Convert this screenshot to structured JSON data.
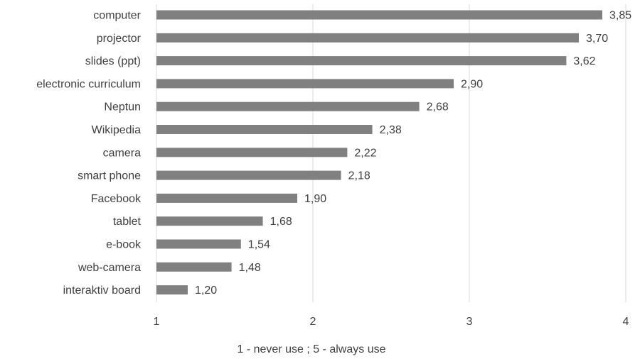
{
  "chart_data": {
    "type": "bar",
    "orientation": "horizontal",
    "categories": [
      "computer",
      "projector",
      "slides (ppt)",
      "electronic curriculum",
      "Neptun",
      "Wikipedia",
      "camera",
      "smart phone",
      "Facebook",
      "tablet",
      "e-book",
      "web-camera",
      "interaktiv board"
    ],
    "values": [
      3.85,
      3.7,
      3.62,
      2.9,
      2.68,
      2.38,
      2.22,
      2.18,
      1.9,
      1.68,
      1.54,
      1.48,
      1.2
    ],
    "value_labels": [
      "3,85",
      "3,70",
      "3,62",
      "2,90",
      "2,68",
      "2,38",
      "2,22",
      "2,18",
      "1,90",
      "1,68",
      "1,54",
      "1,48",
      "1,20"
    ],
    "xticks": [
      1,
      2,
      3,
      4
    ],
    "xtick_labels": [
      "1",
      "2",
      "3",
      "4"
    ],
    "xlim": [
      1,
      4
    ],
    "xlabel": "1 - never use ; 5 - always use",
    "grid": true,
    "bar_color": "#808080",
    "grid_color": "#d9d9d9",
    "text_color": "#404040"
  }
}
